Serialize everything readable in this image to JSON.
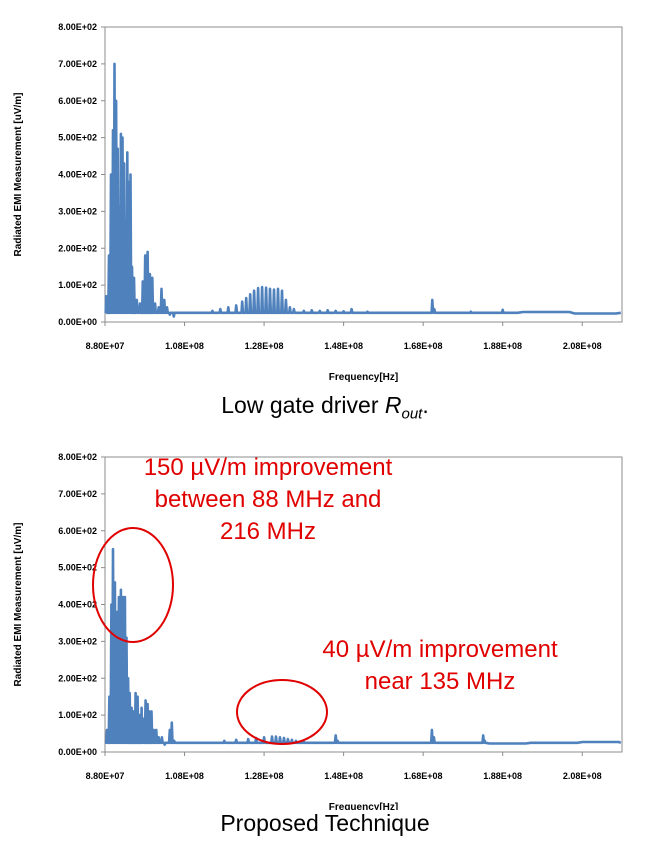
{
  "captions": {
    "top_prefix": "Low gate driver ",
    "top_var": "R",
    "top_sub": "out",
    "top_suffix": ".",
    "bottom": "Proposed Technique"
  },
  "annotations": {
    "a1_line1": "150 µV/m improvement",
    "a1_line2": "between 88 MHz and",
    "a1_line3": "216 MHz",
    "a2_line1": "40 µV/m improvement",
    "a2_line2": "near 135 MHz",
    "color": "#e00000"
  },
  "chart_data": [
    {
      "type": "line",
      "title": "",
      "xlabel": "Frequency[Hz]",
      "ylabel": "Radiated EMI Measurement [uV/m]",
      "xlim": [
        88000000,
        218000000
      ],
      "ylim": [
        0,
        800
      ],
      "x_ticks": [
        "8.80E+07",
        "1.08E+08",
        "1.28E+08",
        "1.48E+08",
        "1.68E+08",
        "1.88E+08",
        "2.08E+08"
      ],
      "x_tick_values": [
        88000000,
        108000000,
        128000000,
        148000000,
        168000000,
        188000000,
        208000000
      ],
      "y_ticks": [
        "0.00E+00",
        "1.00E+02",
        "2.00E+02",
        "3.00E+02",
        "4.00E+02",
        "5.00E+02",
        "6.00E+02",
        "7.00E+02",
        "8.00E+02"
      ],
      "y_tick_values": [
        0,
        100,
        200,
        300,
        400,
        500,
        600,
        700,
        800
      ],
      "color": "#4f81bd",
      "baseline": 25,
      "peaks": [
        [
          88.3,
          70
        ],
        [
          89.0,
          180
        ],
        [
          89.5,
          400
        ],
        [
          90.0,
          520
        ],
        [
          90.4,
          700
        ],
        [
          90.8,
          600
        ],
        [
          91.2,
          470
        ],
        [
          91.6,
          310
        ],
        [
          92.0,
          510
        ],
        [
          92.4,
          500
        ],
        [
          92.8,
          430
        ],
        [
          93.2,
          270
        ],
        [
          93.6,
          460
        ],
        [
          94.0,
          380
        ],
        [
          94.4,
          400
        ],
        [
          94.8,
          150
        ],
        [
          95.3,
          120
        ],
        [
          96.0,
          60
        ],
        [
          96.8,
          50
        ],
        [
          97.5,
          110
        ],
        [
          98.1,
          180
        ],
        [
          98.7,
          190
        ],
        [
          99.3,
          130
        ],
        [
          99.9,
          120
        ],
        [
          100.6,
          50
        ],
        [
          101.5,
          40
        ],
        [
          102.2,
          90
        ],
        [
          102.9,
          60
        ],
        [
          103.6,
          40
        ],
        [
          104.3,
          20
        ],
        [
          105.3,
          15
        ],
        [
          115,
          30
        ],
        [
          117,
          35
        ],
        [
          119,
          40
        ],
        [
          121,
          45
        ],
        [
          122.5,
          55
        ],
        [
          123.5,
          65
        ],
        [
          124.5,
          75
        ],
        [
          125.5,
          85
        ],
        [
          126.5,
          92
        ],
        [
          127.5,
          95
        ],
        [
          128.5,
          93
        ],
        [
          129.5,
          90
        ],
        [
          130.5,
          88
        ],
        [
          131.5,
          90
        ],
        [
          132.5,
          85
        ],
        [
          133.5,
          60
        ],
        [
          134.5,
          40
        ],
        [
          135.5,
          35
        ],
        [
          138,
          30
        ],
        [
          140,
          32
        ],
        [
          142,
          30
        ],
        [
          144,
          32
        ],
        [
          146,
          30
        ],
        [
          148,
          29
        ],
        [
          150,
          35
        ],
        [
          154,
          28
        ],
        [
          170.3,
          60
        ],
        [
          170.8,
          35
        ],
        [
          180,
          28
        ],
        [
          188,
          33
        ]
      ]
    },
    {
      "type": "line",
      "title": "",
      "xlabel": "Frequency[Hz]",
      "ylabel": "Radiated EMI Measurement [uV/m]",
      "xlim": [
        88000000,
        218000000
      ],
      "ylim": [
        0,
        800
      ],
      "x_ticks": [
        "8.80E+07",
        "1.08E+08",
        "1.28E+08",
        "1.48E+08",
        "1.68E+08",
        "1.88E+08",
        "2.08E+08"
      ],
      "x_tick_values": [
        88000000,
        108000000,
        128000000,
        148000000,
        168000000,
        188000000,
        208000000
      ],
      "y_ticks": [
        "0.00E+00",
        "1.00E+02",
        "2.00E+02",
        "3.00E+02",
        "4.00E+02",
        "5.00E+02",
        "6.00E+02",
        "7.00E+02",
        "8.00E+02"
      ],
      "y_tick_values": [
        0,
        100,
        200,
        300,
        400,
        500,
        600,
        700,
        800
      ],
      "color": "#4f81bd",
      "baseline": 25,
      "peaks": [
        [
          88.5,
          60
        ],
        [
          89.1,
          150
        ],
        [
          89.6,
          400
        ],
        [
          90.0,
          550
        ],
        [
          90.5,
          460
        ],
        [
          91.0,
          380
        ],
        [
          91.5,
          420
        ],
        [
          92.0,
          440
        ],
        [
          92.5,
          420
        ],
        [
          93.0,
          420
        ],
        [
          93.4,
          310
        ],
        [
          93.8,
          200
        ],
        [
          94.2,
          160
        ],
        [
          94.7,
          120
        ],
        [
          95.2,
          110
        ],
        [
          95.7,
          160
        ],
        [
          96.2,
          150
        ],
        [
          96.7,
          100
        ],
        [
          97.2,
          120
        ],
        [
          97.7,
          90
        ],
        [
          98.2,
          140
        ],
        [
          98.7,
          130
        ],
        [
          99.2,
          110
        ],
        [
          99.7,
          110
        ],
        [
          100.3,
          60
        ],
        [
          100.9,
          60
        ],
        [
          101.5,
          40
        ],
        [
          102.3,
          40
        ],
        [
          103.0,
          20
        ],
        [
          104.3,
          60
        ],
        [
          104.8,
          80
        ],
        [
          105.4,
          30
        ],
        [
          118,
          30
        ],
        [
          121,
          33
        ],
        [
          124,
          35
        ],
        [
          126,
          38
        ],
        [
          128,
          40
        ],
        [
          130,
          42
        ],
        [
          131,
          42
        ],
        [
          132,
          40
        ],
        [
          133,
          38
        ],
        [
          134,
          35
        ],
        [
          135,
          33
        ],
        [
          136,
          30
        ],
        [
          138,
          28
        ],
        [
          146,
          45
        ],
        [
          146.5,
          30
        ],
        [
          170.2,
          60
        ],
        [
          170.7,
          40
        ],
        [
          183.1,
          45
        ],
        [
          183.5,
          30
        ]
      ]
    }
  ]
}
